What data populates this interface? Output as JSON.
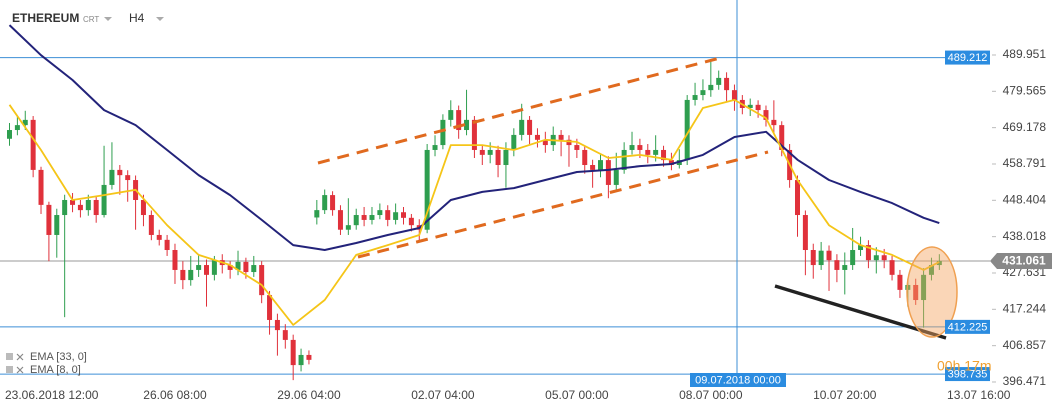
{
  "chart_data": {
    "type": "candlestick",
    "symbol": "ETHEREUM",
    "instrument_type": "CRT",
    "timeframe": "H4",
    "categories": [
      null,
      null,
      null,
      null,
      "23.06.2018 12:00",
      null,
      null,
      null,
      null,
      null,
      null,
      null,
      null,
      null,
      null,
      null,
      null,
      null,
      null,
      null,
      null,
      "26.06 08:00",
      null,
      null,
      null,
      null,
      null,
      null,
      null,
      null,
      null,
      null,
      null,
      null,
      null,
      null,
      null,
      null,
      "29.06 04:00",
      null,
      null,
      null,
      null,
      null,
      null,
      null,
      null,
      null,
      null,
      null,
      null,
      null,
      null,
      null,
      null,
      "02.07 04:00",
      null,
      null,
      null,
      null,
      null,
      null,
      null,
      null,
      null,
      null,
      null,
      null,
      null,
      null,
      null,
      null,
      "05.07 00:00",
      null,
      null,
      null,
      null,
      null,
      null,
      null,
      null,
      null,
      null,
      null,
      null,
      null,
      null,
      null,
      null,
      "08.07 00:00",
      null,
      null,
      null,
      null,
      null,
      null,
      null,
      null,
      null,
      null,
      null,
      null,
      null,
      null,
      null,
      null,
      "10.07 20:00",
      null,
      null,
      null,
      null,
      null,
      null,
      null,
      null,
      null,
      null,
      null,
      null,
      null,
      null,
      null,
      null,
      "13.07 16:00"
    ],
    "candles": [
      [
        466.0,
        470.5,
        464.0,
        468.5
      ],
      [
        468.5,
        472.5,
        467.0,
        469.9
      ],
      [
        469.9,
        474.0,
        468.5,
        471.4
      ],
      [
        471.4,
        472.5,
        455.0,
        457.1
      ],
      [
        457.1,
        458.0,
        444.5,
        447.1
      ],
      [
        447.1,
        448.0,
        431.0,
        438.5
      ],
      [
        438.5,
        446.0,
        432.0,
        444.2
      ],
      [
        444.2,
        450.0,
        415.0,
        448.5
      ],
      [
        448.5,
        450.5,
        445.0,
        447.1
      ],
      [
        447.1,
        448.5,
        443.5,
        445.6
      ],
      [
        445.6,
        450.0,
        444.0,
        448.5
      ],
      [
        448.5,
        449.5,
        442.0,
        444.2
      ],
      [
        444.2,
        464.0,
        443.5,
        452.8
      ],
      [
        452.8,
        465.0,
        451.5,
        457.1
      ],
      [
        457.1,
        458.5,
        450.0,
        455.6
      ],
      [
        455.6,
        457.0,
        448.0,
        454.2
      ],
      [
        454.2,
        455.5,
        440.0,
        448.5
      ],
      [
        448.5,
        450.0,
        441.0,
        444.2
      ],
      [
        444.2,
        445.5,
        437.0,
        438.5
      ],
      [
        438.5,
        440.0,
        435.5,
        437.1
      ],
      [
        437.1,
        438.5,
        432.5,
        434.2
      ],
      [
        434.2,
        436.0,
        424.5,
        428.5
      ],
      [
        428.5,
        431.0,
        423.0,
        425.6
      ],
      [
        425.6,
        432.5,
        424.0,
        428.5
      ],
      [
        428.5,
        433.0,
        426.5,
        429.9
      ],
      [
        429.9,
        431.5,
        418.0,
        427.1
      ],
      [
        427.1,
        432.5,
        425.5,
        431.3
      ],
      [
        431.3,
        433.0,
        427.5,
        429.9
      ],
      [
        429.9,
        431.0,
        426.0,
        428.5
      ],
      [
        428.5,
        434.0,
        427.0,
        430.8
      ],
      [
        430.8,
        432.0,
        426.0,
        427.9
      ],
      [
        427.9,
        432.5,
        426.5,
        429.9
      ],
      [
        429.9,
        431.0,
        419.0,
        421.3
      ],
      [
        421.3,
        422.5,
        410.0,
        414.2
      ],
      [
        414.2,
        416.0,
        404.0,
        411.3
      ],
      [
        411.3,
        413.0,
        406.0,
        408.5
      ],
      [
        408.5,
        410.0,
        397.0,
        401.3
      ],
      [
        401.3,
        406.0,
        399.5,
        404.2
      ],
      [
        404.2,
        405.5,
        401.5,
        402.8
      ],
      [
        443.5,
        448.5,
        441.5,
        445.6
      ],
      [
        445.6,
        451.5,
        444.5,
        449.9
      ],
      [
        449.9,
        451.0,
        444.0,
        445.6
      ],
      [
        445.6,
        447.0,
        438.5,
        440.0
      ],
      [
        440.0,
        449.0,
        438.5,
        441.3
      ],
      [
        441.3,
        446.0,
        440.0,
        444.2
      ],
      [
        444.2,
        446.5,
        441.0,
        442.8
      ],
      [
        442.8,
        446.5,
        441.5,
        444.2
      ],
      [
        444.2,
        447.5,
        443.0,
        445.6
      ],
      [
        445.6,
        447.0,
        441.0,
        442.8
      ],
      [
        442.8,
        447.5,
        441.5,
        445.0
      ],
      [
        445.0,
        446.5,
        441.5,
        443.4
      ],
      [
        443.4,
        444.5,
        439.5,
        441.3
      ],
      [
        441.3,
        443.0,
        436.5,
        440.0
      ],
      [
        440.0,
        464.5,
        439.0,
        462.8
      ],
      [
        462.8,
        467.0,
        461.0,
        464.2
      ],
      [
        464.2,
        473.0,
        463.0,
        471.4
      ],
      [
        471.4,
        477.0,
        469.5,
        474.2
      ],
      [
        474.2,
        475.5,
        466.0,
        468.5
      ],
      [
        468.5,
        480.0,
        467.0,
        471.4
      ],
      [
        471.4,
        472.5,
        460.5,
        462.8
      ],
      [
        462.8,
        464.0,
        458.5,
        461.4
      ],
      [
        461.4,
        465.0,
        459.0,
        462.8
      ],
      [
        462.8,
        464.0,
        455.0,
        458.5
      ],
      [
        458.5,
        465.0,
        452.0,
        462.8
      ],
      [
        462.8,
        469.0,
        461.0,
        467.1
      ],
      [
        467.1,
        476.0,
        465.5,
        471.4
      ],
      [
        471.4,
        472.5,
        464.5,
        467.1
      ],
      [
        467.1,
        469.0,
        463.5,
        465.7
      ],
      [
        465.7,
        468.0,
        462.0,
        464.2
      ],
      [
        464.2,
        469.5,
        462.5,
        467.1
      ],
      [
        467.1,
        468.5,
        461.0,
        465.7
      ],
      [
        465.7,
        467.0,
        458.0,
        464.2
      ],
      [
        464.2,
        466.0,
        460.5,
        462.8
      ],
      [
        462.8,
        464.0,
        456.0,
        458.5
      ],
      [
        458.5,
        460.0,
        452.0,
        457.1
      ],
      [
        457.1,
        461.5,
        455.0,
        459.9
      ],
      [
        459.9,
        461.0,
        449.0,
        452.8
      ],
      [
        452.8,
        462.0,
        451.0,
        457.1
      ],
      [
        457.1,
        465.0,
        456.0,
        462.8
      ],
      [
        462.8,
        468.0,
        461.5,
        464.2
      ],
      [
        464.2,
        466.0,
        460.5,
        462.8
      ],
      [
        462.8,
        464.5,
        459.0,
        461.4
      ],
      [
        461.4,
        467.0,
        459.5,
        462.8
      ],
      [
        462.8,
        464.0,
        458.0,
        459.9
      ],
      [
        459.9,
        462.0,
        457.0,
        458.5
      ],
      [
        458.5,
        463.0,
        457.5,
        459.9
      ],
      [
        459.9,
        478.5,
        458.5,
        477.1
      ],
      [
        477.1,
        482.0,
        475.5,
        478.5
      ],
      [
        478.5,
        483.0,
        477.0,
        479.9
      ],
      [
        479.9,
        488.0,
        478.0,
        481.4
      ],
      [
        481.4,
        485.5,
        480.0,
        483.4
      ],
      [
        483.4,
        485.0,
        476.5,
        479.9
      ],
      [
        479.9,
        481.5,
        474.0,
        477.1
      ],
      [
        477.1,
        478.5,
        473.0,
        474.8
      ],
      [
        474.8,
        477.5,
        472.5,
        475.7
      ],
      [
        475.7,
        477.0,
        472.0,
        474.2
      ],
      [
        474.2,
        475.5,
        469.5,
        471.4
      ],
      [
        471.4,
        477.0,
        467.5,
        469.9
      ],
      [
        469.9,
        471.0,
        461.0,
        462.8
      ],
      [
        462.8,
        464.5,
        452.0,
        454.2
      ],
      [
        454.2,
        455.5,
        438.0,
        444.2
      ],
      [
        444.2,
        445.5,
        427.0,
        434.2
      ],
      [
        434.2,
        436.0,
        426.0,
        429.9
      ],
      [
        429.9,
        436.5,
        428.5,
        434.0
      ],
      [
        434.0,
        435.5,
        422.5,
        431.3
      ],
      [
        431.3,
        433.0,
        425.0,
        428.5
      ],
      [
        428.5,
        433.5,
        421.5,
        429.9
      ],
      [
        429.9,
        440.5,
        428.5,
        434.2
      ],
      [
        434.2,
        438.0,
        432.5,
        435.6
      ],
      [
        435.6,
        437.0,
        429.0,
        431.3
      ],
      [
        431.3,
        435.0,
        427.5,
        432.7
      ],
      [
        432.7,
        434.5,
        429.0,
        431.3
      ],
      [
        431.3,
        432.5,
        425.5,
        427.1
      ],
      [
        427.1,
        428.5,
        420.5,
        422.8
      ],
      [
        422.8,
        426.0,
        418.0,
        424.2
      ],
      [
        424.2,
        426.0,
        418.5,
        419.9
      ],
      [
        419.9,
        429.0,
        412.0,
        427.1
      ],
      [
        427.1,
        432.0,
        425.5,
        429.9
      ],
      [
        429.9,
        433.0,
        428.5,
        431.061
      ],
      null,
      null,
      null,
      null,
      null
    ],
    "up_color": "#2e9e4f",
    "down_color": "#e0313b",
    "series": [
      {
        "name": "EMA [33, 0]",
        "color": "#23237a",
        "x": [
          0,
          4,
          8,
          12,
          16,
          20,
          24,
          28,
          32,
          36,
          40,
          44,
          48,
          52,
          56,
          60,
          64,
          68,
          72,
          76,
          80,
          84,
          88,
          92,
          96,
          100,
          104,
          108,
          112,
          116,
          118
        ],
        "values": [
          498.5,
          489.9,
          482.8,
          474.2,
          469.9,
          462.8,
          455.6,
          449.9,
          442.8,
          435.6,
          434.2,
          436.2,
          438.5,
          440.5,
          448.5,
          450.8,
          451.9,
          454.2,
          456.5,
          457.1,
          458.2,
          458.8,
          461.4,
          466.5,
          468.0,
          460.0,
          454.2,
          450.8,
          447.6,
          443.4,
          441.9
        ]
      },
      {
        "name": "EMA [8, 0]",
        "color": "#f5c518",
        "x": [
          0,
          4,
          8,
          12,
          16,
          20,
          24,
          28,
          32,
          36,
          40,
          44,
          48,
          52,
          56,
          60,
          64,
          68,
          72,
          76,
          80,
          84,
          88,
          92,
          96,
          100,
          104,
          108,
          112,
          116,
          118
        ],
        "values": [
          475.7,
          462.8,
          448.5,
          449.9,
          451.4,
          441.3,
          432.8,
          429.9,
          424.2,
          412.8,
          419.9,
          432.8,
          435.6,
          438.5,
          464.2,
          464.2,
          462.8,
          465.7,
          465.1,
          460.5,
          461.4,
          460.0,
          474.8,
          477.1,
          471.9,
          454.2,
          441.3,
          435.6,
          432.8,
          428.5,
          430.8
        ]
      }
    ],
    "ylim": [
      392.75,
      505.67
    ],
    "yticks": [
      396.471,
      406.857,
      417.244,
      427.631,
      438.018,
      448.404,
      458.791,
      469.178,
      479.565,
      489.951
    ],
    "levels": [
      489.212,
      412.225,
      398.735
    ],
    "current_price": 431.061,
    "crosshair_label": "09.07.2018 00:00",
    "timer": "00h 17m"
  }
}
